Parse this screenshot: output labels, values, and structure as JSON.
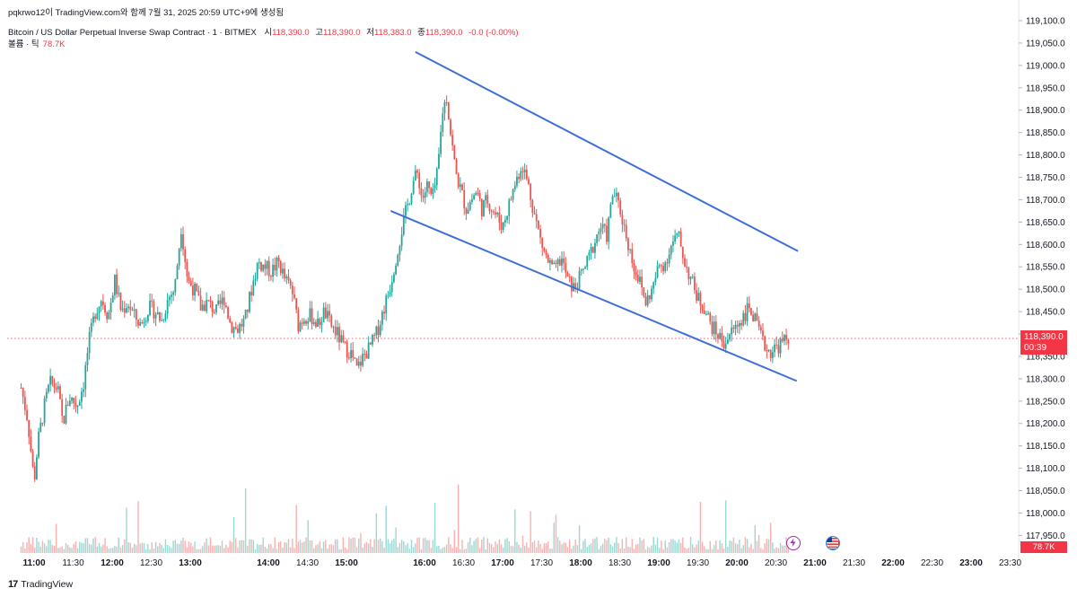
{
  "header": {
    "published_by": "pqkrwo12이 TradingView.com와 함께 7월 31, 2025 20:59 UTC+9에 생성됨",
    "symbol": "Bitcoin / US Dollar Perpetual Inverse Swap Contract · 1 · BITMEX",
    "open_label": "시",
    "open_value": "118,390.0",
    "high_label": "고",
    "high_value": "118,390.0",
    "low_label": "저",
    "low_value": "118,383.0",
    "close_label": "종",
    "close_value": "118,390.0",
    "change": "-0.0 (-0.00%)",
    "volume_label": "볼륨 · 틱",
    "volume_value": "78.7K"
  },
  "price_tag": {
    "price": "118,390.0",
    "countdown": "00:39"
  },
  "volume_tag": "78.7K",
  "brand": "TradingView",
  "colors": {
    "up": "#26a69a",
    "down": "#ef5350",
    "trendline": "#3d6fd6",
    "last_price": "#f23645"
  },
  "events": [
    "lightning-icon",
    "us-flag-icon"
  ],
  "chart_data": {
    "type": "candlestick",
    "title": "Bitcoin / US Dollar Perpetual Inverse Swap Contract · 1 · BITMEX",
    "interval_minutes": 1,
    "y_ticks": [
      "117,950.0",
      "118,000.0",
      "118,050.0",
      "118,100.0",
      "118,150.0",
      "118,200.0",
      "118,250.0",
      "118,300.0",
      "118,350.0",
      "118,400.0",
      "118,450.0",
      "118,500.0",
      "118,550.0",
      "118,600.0",
      "118,650.0",
      "118,700.0",
      "118,750.0",
      "118,800.0",
      "118,850.0",
      "118,900.0",
      "118,950.0",
      "119,000.0",
      "119,050.0",
      "119,100.0"
    ],
    "ylim": [
      117925,
      119110
    ],
    "x_ticks": [
      "11:00",
      "11:30",
      "12:00",
      "12:30",
      "13:00",
      "14:00",
      "14:30",
      "15:00",
      "16:00",
      "16:30",
      "17:00",
      "17:30",
      "18:00",
      "18:30",
      "19:00",
      "19:30",
      "20:00",
      "20:30",
      "21:00",
      "21:30",
      "22:00",
      "22:30",
      "23:00",
      "23:30"
    ],
    "x_tick_times": [
      "11:00",
      "11:30",
      "12:00",
      "12:30",
      "13:00",
      "14:00",
      "14:30",
      "15:00",
      "16:00",
      "16:30",
      "17:00",
      "17:30",
      "18:00",
      "18:30",
      "19:00",
      "19:30",
      "20:00",
      "20:30",
      "21:00",
      "21:30",
      "22:00",
      "22:30",
      "23:00",
      "23:30"
    ],
    "last_price": 118390.0,
    "close_path": [
      [
        "10:50",
        118280
      ],
      [
        "10:55",
        118210
      ],
      [
        "11:00",
        118070
      ],
      [
        "11:03",
        118160
      ],
      [
        "11:08",
        118240
      ],
      [
        "11:12",
        118290
      ],
      [
        "11:18",
        118280
      ],
      [
        "11:22",
        118200
      ],
      [
        "11:27",
        118260
      ],
      [
        "11:33",
        118240
      ],
      [
        "11:38",
        118290
      ],
      [
        "11:42",
        118380
      ],
      [
        "11:47",
        118450
      ],
      [
        "11:52",
        118480
      ],
      [
        "11:57",
        118440
      ],
      [
        "12:02",
        118520
      ],
      [
        "12:07",
        118450
      ],
      [
        "12:12",
        118470
      ],
      [
        "12:17",
        118440
      ],
      [
        "12:22",
        118420
      ],
      [
        "12:28",
        118460
      ],
      [
        "12:33",
        118450
      ],
      [
        "12:38",
        118430
      ],
      [
        "12:43",
        118480
      ],
      [
        "12:48",
        118500
      ],
      [
        "12:53",
        118640
      ],
      [
        "12:58",
        118520
      ],
      [
        "13:03",
        118500
      ],
      [
        "13:08",
        118460
      ],
      [
        "13:13",
        118470
      ],
      [
        "13:20",
        118450
      ],
      [
        "13:26",
        118480
      ],
      [
        "13:31",
        118420
      ],
      [
        "13:36",
        118410
      ],
      [
        "13:42",
        118430
      ],
      [
        "13:47",
        118500
      ],
      [
        "13:52",
        118560
      ],
      [
        "13:57",
        118550
      ],
      [
        "14:02",
        118540
      ],
      [
        "14:08",
        118560
      ],
      [
        "14:13",
        118520
      ],
      [
        "14:18",
        118500
      ],
      [
        "14:23",
        118420
      ],
      [
        "14:28",
        118440
      ],
      [
        "14:33",
        118440
      ],
      [
        "14:38",
        118420
      ],
      [
        "14:43",
        118450
      ],
      [
        "14:48",
        118420
      ],
      [
        "14:53",
        118400
      ],
      [
        "14:58",
        118370
      ],
      [
        "15:03",
        118360
      ],
      [
        "15:08",
        118320
      ],
      [
        "15:13",
        118350
      ],
      [
        "15:18",
        118370
      ],
      [
        "15:23",
        118400
      ],
      [
        "15:28",
        118450
      ],
      [
        "15:33",
        118500
      ],
      [
        "15:38",
        118570
      ],
      [
        "15:43",
        118640
      ],
      [
        "15:48",
        118700
      ],
      [
        "15:51",
        118740
      ],
      [
        "15:55",
        118760
      ],
      [
        "15:58",
        118700
      ],
      [
        "16:02",
        118730
      ],
      [
        "16:06",
        118700
      ],
      [
        "16:10",
        118760
      ],
      [
        "16:14",
        118900
      ],
      [
        "16:17",
        118930
      ],
      [
        "16:20",
        118850
      ],
      [
        "16:24",
        118760
      ],
      [
        "16:28",
        118720
      ],
      [
        "16:32",
        118680
      ],
      [
        "16:36",
        118700
      ],
      [
        "16:40",
        118720
      ],
      [
        "16:44",
        118680
      ],
      [
        "16:48",
        118700
      ],
      [
        "16:52",
        118680
      ],
      [
        "16:56",
        118660
      ],
      [
        "17:00",
        118640
      ],
      [
        "17:05",
        118690
      ],
      [
        "17:10",
        118740
      ],
      [
        "17:15",
        118780
      ],
      [
        "17:20",
        118730
      ],
      [
        "17:25",
        118660
      ],
      [
        "17:30",
        118600
      ],
      [
        "17:35",
        118560
      ],
      [
        "17:40",
        118540
      ],
      [
        "17:45",
        118570
      ],
      [
        "17:50",
        118520
      ],
      [
        "17:55",
        118500
      ],
      [
        "18:00",
        118530
      ],
      [
        "18:05",
        118560
      ],
      [
        "18:10",
        118600
      ],
      [
        "18:15",
        118640
      ],
      [
        "18:20",
        118620
      ],
      [
        "18:25",
        118720
      ],
      [
        "18:30",
        118680
      ],
      [
        "18:35",
        118620
      ],
      [
        "18:40",
        118560
      ],
      [
        "18:45",
        118520
      ],
      [
        "18:50",
        118470
      ],
      [
        "18:55",
        118500
      ],
      [
        "19:00",
        118550
      ],
      [
        "19:05",
        118560
      ],
      [
        "19:10",
        118600
      ],
      [
        "19:15",
        118620
      ],
      [
        "19:20",
        118560
      ],
      [
        "19:25",
        118520
      ],
      [
        "19:30",
        118480
      ],
      [
        "19:35",
        118460
      ],
      [
        "19:40",
        118420
      ],
      [
        "19:45",
        118400
      ],
      [
        "19:50",
        118380
      ],
      [
        "19:55",
        118400
      ],
      [
        "20:00",
        118420
      ],
      [
        "20:05",
        118440
      ],
      [
        "20:10",
        118460
      ],
      [
        "20:15",
        118420
      ],
      [
        "20:20",
        118380
      ],
      [
        "20:25",
        118360
      ],
      [
        "20:30",
        118370
      ],
      [
        "20:35",
        118380
      ],
      [
        "20:40",
        118390
      ]
    ],
    "trendlines": [
      {
        "name": "upper",
        "from": [
          "15:53",
          119030
        ],
        "to": [
          "20:47",
          118585
        ]
      },
      {
        "name": "lower",
        "from": [
          "15:34",
          118675
        ],
        "to": [
          "20:46",
          118295
        ]
      }
    ]
  }
}
